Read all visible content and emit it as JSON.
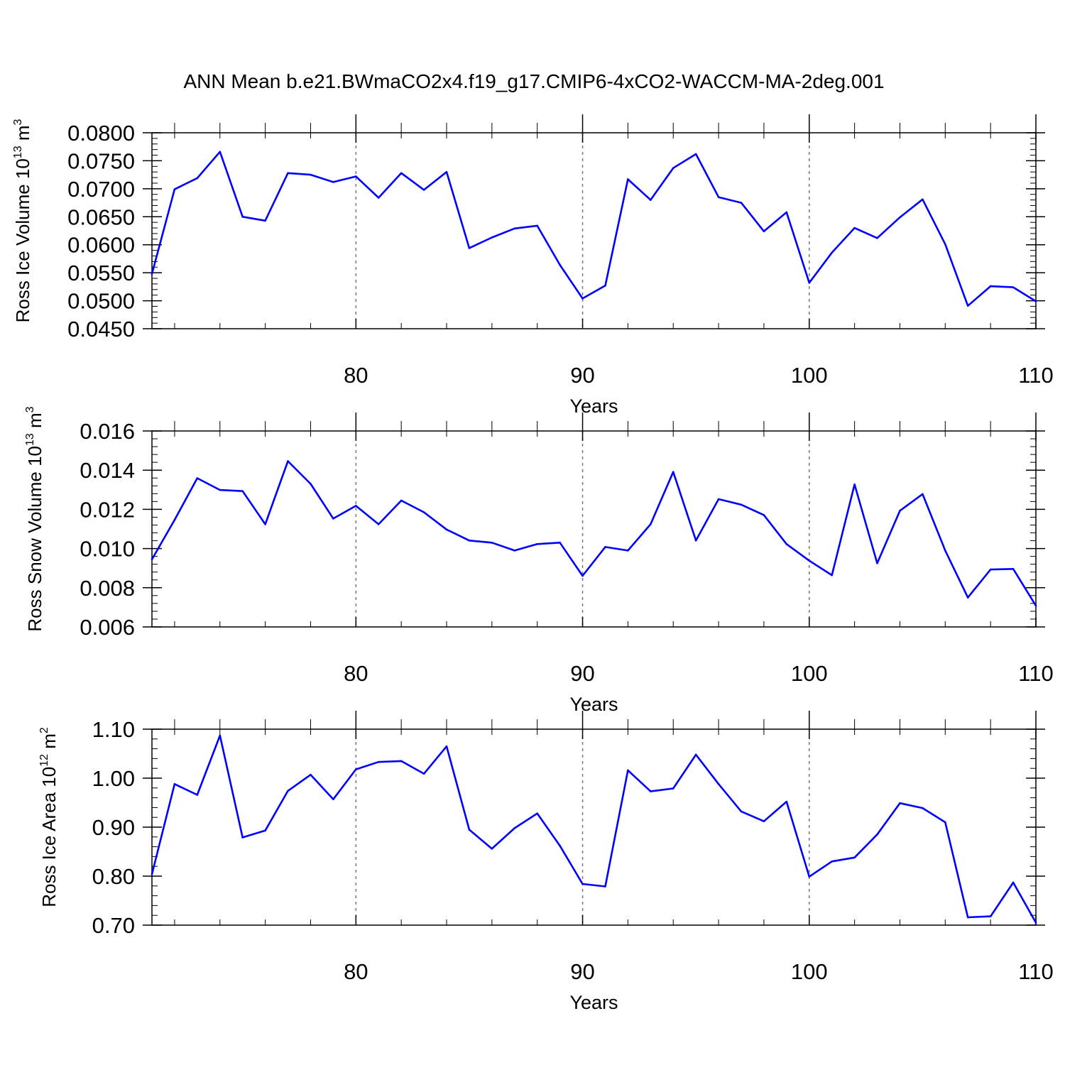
{
  "title": "ANN Mean b.e21.BWmaCO2x4.f19_g17.CMIP6-4xCO2-WACCM-MA-2deg.001",
  "line_color": "#0000ff",
  "chart_data": [
    {
      "type": "line",
      "xlabel": "Years",
      "ylabel": {
        "text": "Ross Ice Volume 10",
        "sup": "13",
        "unit": " m",
        "unit_sup": "3"
      },
      "xlim": [
        71,
        110
      ],
      "ylim": [
        0.045,
        0.08
      ],
      "xticks": [
        80,
        90,
        100,
        110
      ],
      "xtick_labels": [
        "80",
        "90",
        "100",
        "110"
      ],
      "yticks": [
        0.045,
        0.05,
        0.055,
        0.06,
        0.065,
        0.07,
        0.075,
        0.08
      ],
      "ytick_labels": [
        "0.0450",
        "0.0500",
        "0.0550",
        "0.0600",
        "0.0650",
        "0.0700",
        "0.0750",
        "0.0800"
      ],
      "grid": "vertical dashed at major x ticks",
      "series": [
        {
          "x": [
            71,
            72,
            73,
            74,
            75,
            76,
            77,
            78,
            79,
            80,
            81,
            82,
            83,
            84,
            85,
            86,
            87,
            88,
            89,
            90,
            91,
            92,
            93,
            94,
            95,
            96,
            97,
            98,
            99,
            100,
            101,
            102,
            103,
            104,
            105,
            106,
            107,
            108,
            109,
            110
          ],
          "values": [
            0.0548,
            0.0699,
            0.0719,
            0.0766,
            0.065,
            0.0643,
            0.0728,
            0.0725,
            0.0712,
            0.0722,
            0.0684,
            0.0728,
            0.0698,
            0.073,
            0.0594,
            0.0613,
            0.0629,
            0.0634,
            0.0564,
            0.0504,
            0.0527,
            0.0717,
            0.068,
            0.0737,
            0.0762,
            0.0685,
            0.0675,
            0.0624,
            0.0658,
            0.0532,
            0.0586,
            0.063,
            0.0612,
            0.0649,
            0.0681,
            0.0601,
            0.0491,
            0.0526,
            0.0524,
            0.0499
          ]
        }
      ]
    },
    {
      "type": "line",
      "xlabel": "Years",
      "ylabel": {
        "text": "Ross Snow Volume 10",
        "sup": "13",
        "unit": " m",
        "unit_sup": "3"
      },
      "xlim": [
        71,
        110
      ],
      "ylim": [
        0.006,
        0.016
      ],
      "xticks": [
        80,
        90,
        100,
        110
      ],
      "xtick_labels": [
        "80",
        "90",
        "100",
        "110"
      ],
      "yticks": [
        0.006,
        0.008,
        0.01,
        0.012,
        0.014,
        0.016
      ],
      "ytick_labels": [
        "0.006",
        "0.008",
        "0.010",
        "0.012",
        "0.014",
        "0.016"
      ],
      "grid": "vertical dashed at major x ticks",
      "series": [
        {
          "x": [
            71,
            72,
            73,
            74,
            75,
            76,
            77,
            78,
            79,
            80,
            81,
            82,
            83,
            84,
            85,
            86,
            87,
            88,
            89,
            90,
            91,
            92,
            93,
            94,
            95,
            96,
            97,
            98,
            99,
            100,
            101,
            102,
            103,
            104,
            105,
            106,
            107,
            108,
            109,
            110
          ],
          "values": [
            0.00945,
            0.01146,
            0.01359,
            0.01299,
            0.01293,
            0.01124,
            0.01446,
            0.0133,
            0.01153,
            0.01218,
            0.01124,
            0.01245,
            0.01185,
            0.01097,
            0.01041,
            0.0103,
            0.0099,
            0.01023,
            0.0103,
            0.00861,
            0.01008,
            0.0099,
            0.01124,
            0.01391,
            0.01041,
            0.01252,
            0.01224,
            0.01171,
            0.01023,
            0.00938,
            0.00864,
            0.01327,
            0.00925,
            0.01193,
            0.01278,
            0.0099,
            0.0075,
            0.00893,
            0.00896,
            0.00708
          ]
        }
      ]
    },
    {
      "type": "line",
      "xlabel": "Years",
      "ylabel": {
        "text": "Ross Ice Area 10",
        "sup": "12",
        "unit": " m",
        "unit_sup": "2"
      },
      "xlim": [
        71,
        110
      ],
      "ylim": [
        0.7,
        1.1
      ],
      "xticks": [
        80,
        90,
        100,
        110
      ],
      "xtick_labels": [
        "80",
        "90",
        "100",
        "110"
      ],
      "yticks": [
        0.7,
        0.8,
        0.9,
        1.0,
        1.1
      ],
      "ytick_labels": [
        "0.70",
        "0.80",
        "0.90",
        "1.00",
        "1.10"
      ],
      "grid": "vertical dashed at major x ticks",
      "series": [
        {
          "x": [
            71,
            72,
            73,
            74,
            75,
            76,
            77,
            78,
            79,
            80,
            81,
            82,
            83,
            84,
            85,
            86,
            87,
            88,
            89,
            90,
            91,
            92,
            93,
            94,
            95,
            96,
            97,
            98,
            99,
            100,
            101,
            102,
            103,
            104,
            105,
            106,
            107,
            108,
            109,
            110
          ],
          "values": [
            0.804,
            0.988,
            0.966,
            1.087,
            0.879,
            0.893,
            0.974,
            1.007,
            0.957,
            1.018,
            1.033,
            1.035,
            1.009,
            1.065,
            0.895,
            0.856,
            0.898,
            0.928,
            0.862,
            0.784,
            0.779,
            1.016,
            0.973,
            0.979,
            1.048,
            0.988,
            0.932,
            0.912,
            0.952,
            0.799,
            0.83,
            0.838,
            0.885,
            0.949,
            0.939,
            0.91,
            0.716,
            0.718,
            0.787,
            0.705
          ]
        }
      ]
    }
  ]
}
